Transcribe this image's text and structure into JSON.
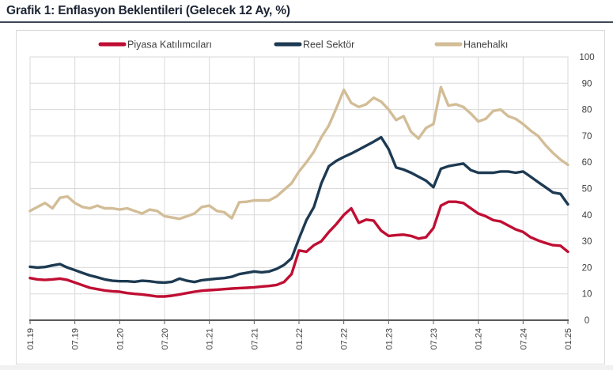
{
  "header": {
    "title": "Grafik 1: Enflasyon Beklentileri (Gelecek 12 Ay, %)"
  },
  "colors": {
    "title_text": "#1c2433",
    "title_rule": "#3e4856",
    "panel_border": "#d9d9d9",
    "grid": "#d9d9d9",
    "axis": "#595959",
    "tick_label": "#404040",
    "legend_label": "#3f3f3f",
    "series_piyasa": "#c00e33",
    "series_reel": "#1d3a52",
    "series_hane": "#d2bd97"
  },
  "chart_data": {
    "type": "line",
    "title": "Grafik 1: Enflasyon Beklentileri (Gelecek 12 Ay, %)",
    "xlabel": "",
    "ylabel": "",
    "grid": true,
    "legend_position": "top",
    "y_axis": {
      "min": 0,
      "max": 100,
      "step": 10,
      "side": "right",
      "tick_labels": [
        "0",
        "10",
        "20",
        "30",
        "40",
        "50",
        "60",
        "70",
        "80",
        "90",
        "100"
      ]
    },
    "x_tick_labels": [
      "01.19",
      "07.19",
      "01.20",
      "07.20",
      "01.21",
      "07.21",
      "01.22",
      "07.22",
      "01.23",
      "07.23",
      "01.24",
      "07.24",
      "01.25"
    ],
    "x_frequency": "monthly",
    "x_range": "2019-01 to 2025-01",
    "series": [
      {
        "name": "Piyasa Katılımcıları",
        "color": "#c00e33",
        "values": [
          16,
          15.5,
          15.3,
          15.5,
          15.8,
          15.3,
          14.3,
          13.3,
          12.3,
          11.8,
          11.3,
          11,
          10.8,
          10.3,
          10,
          9.8,
          9.4,
          9,
          9,
          9.3,
          9.8,
          10.3,
          10.8,
          11.2,
          11.4,
          11.6,
          11.8,
          12,
          12.2,
          12.3,
          12.5,
          12.8,
          13,
          13.4,
          14.5,
          17.5,
          26.5,
          26,
          28.5,
          30,
          33.5,
          36.5,
          40,
          42.5,
          37,
          38.2,
          37.8,
          34,
          32,
          32.3,
          32.5,
          32,
          31,
          31.5,
          35,
          43.5,
          45,
          45,
          44.5,
          42.5,
          40.5,
          39.5,
          38,
          37.5,
          36,
          34.5,
          33.5,
          31.5,
          30.3,
          29.3,
          28.5,
          28.3,
          26
        ]
      },
      {
        "name": "Reel Sektör",
        "color": "#1d3a52",
        "values": [
          20.3,
          20,
          20.2,
          20.8,
          21.3,
          20,
          19,
          18,
          17,
          16.3,
          15.5,
          15,
          14.8,
          14.8,
          14.6,
          15,
          14.8,
          14.4,
          14.3,
          14.6,
          15.8,
          15,
          14.5,
          15.2,
          15.5,
          15.8,
          16,
          16.5,
          17.5,
          18,
          18.5,
          18.2,
          18.5,
          19.5,
          21,
          23.5,
          31,
          38,
          43,
          52,
          58.5,
          60.5,
          62,
          63.3,
          64.8,
          66.3,
          67.8,
          69.5,
          65,
          58,
          57.2,
          56,
          54.5,
          53,
          50.5,
          57.5,
          58.5,
          59,
          59.5,
          57,
          56,
          56,
          56,
          56.5,
          56.5,
          56,
          56.5,
          54.5,
          52.5,
          50.5,
          48.5,
          48,
          44
        ]
      },
      {
        "name": "Hanehalkı",
        "color": "#d2bd97",
        "values": [
          41.5,
          43,
          44.5,
          42.5,
          46.5,
          47,
          44.5,
          43,
          42.5,
          43.5,
          42.5,
          42.5,
          42,
          42.5,
          41.5,
          40.5,
          42,
          41.5,
          39.5,
          39,
          38.5,
          39.5,
          40.5,
          43,
          43.5,
          41.5,
          41,
          38.7,
          44.8,
          45,
          45.5,
          45.5,
          45.5,
          47,
          49.5,
          52,
          56.5,
          60,
          64,
          69.5,
          74,
          80.5,
          87.5,
          82.5,
          81,
          82,
          84.5,
          83,
          80,
          76,
          77.5,
          71.5,
          69,
          73,
          74.5,
          88.5,
          81.5,
          82,
          81,
          78.5,
          75.5,
          76.5,
          79.5,
          80,
          77.5,
          76.5,
          74.5,
          72,
          70,
          66.5,
          63.5,
          61,
          59
        ]
      }
    ]
  }
}
